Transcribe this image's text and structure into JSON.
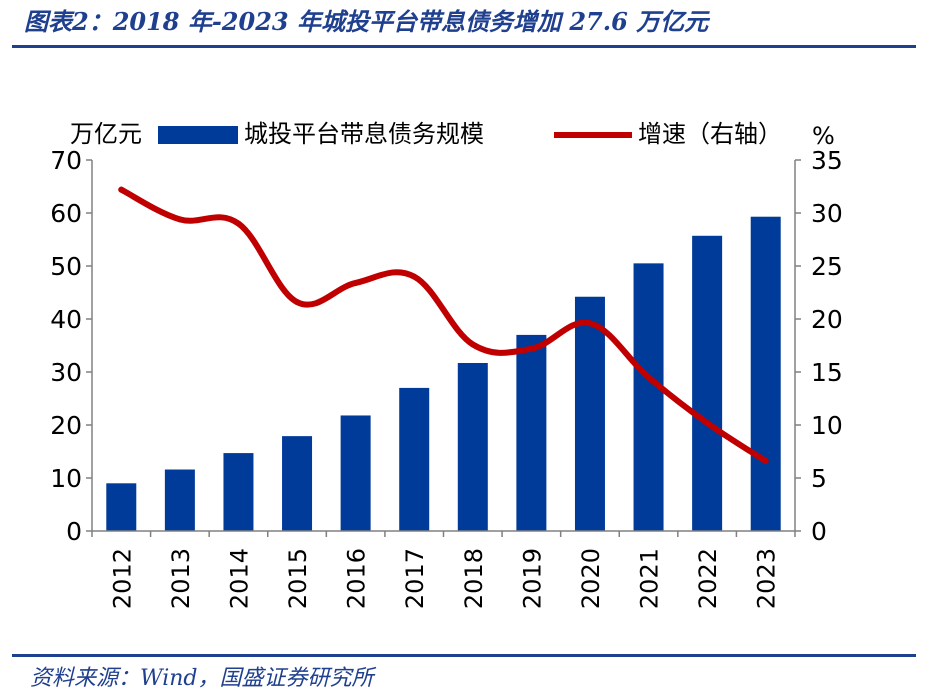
{
  "header": {
    "title": "图表2：2018 年-2023 年城投平台带息债务增加 27.6 万亿元"
  },
  "footer": {
    "source": "资料来源：Wind，国盛证券研究所"
  },
  "chart_data": {
    "type": "bar+line",
    "categories": [
      "2012",
      "2013",
      "2014",
      "2015",
      "2016",
      "2017",
      "2018",
      "2019",
      "2020",
      "2021",
      "2022",
      "2023"
    ],
    "series": [
      {
        "name": "城投平台带息债务规模",
        "type": "bar",
        "axis": "left",
        "values": [
          9.0,
          11.6,
          14.7,
          17.9,
          21.8,
          27.0,
          31.7,
          37.0,
          44.2,
          50.5,
          55.7,
          59.3
        ]
      },
      {
        "name": "增速（右轴）",
        "type": "line",
        "axis": "right",
        "values": [
          32.2,
          29.4,
          29.0,
          21.6,
          23.4,
          24.0,
          17.6,
          17.2,
          19.6,
          14.5,
          10.2,
          6.6
        ]
      }
    ],
    "left_axis": {
      "label": "万亿元",
      "min": 0,
      "max": 70,
      "ticks": [
        0,
        10,
        20,
        30,
        40,
        50,
        60,
        70
      ]
    },
    "right_axis": {
      "label": "%",
      "min": 0,
      "max": 35,
      "ticks": [
        0,
        5,
        10,
        15,
        20,
        25,
        30,
        35
      ]
    },
    "legend": "top",
    "grid": false,
    "colors": {
      "bar": "#003b99",
      "line": "#c00000",
      "axis": "#808080"
    }
  }
}
